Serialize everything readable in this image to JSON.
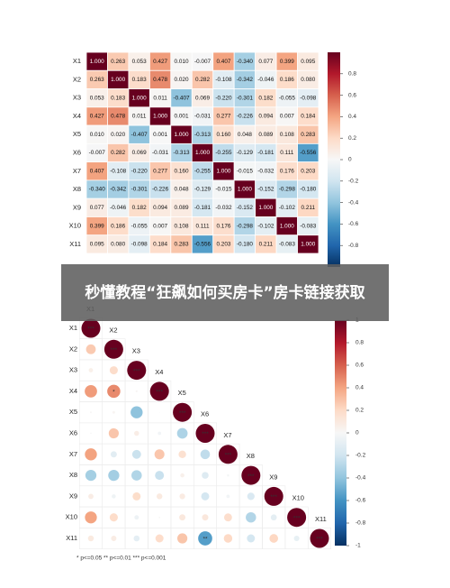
{
  "banner": "秒懂教程“狂飙如何买房卡”房卡链接获取",
  "chart_data": [
    {
      "type": "heatmap",
      "categories": [
        "X1",
        "X2",
        "X3",
        "X4",
        "X5",
        "X6",
        "X7",
        "X8",
        "X9",
        "X10",
        "X11"
      ],
      "values": [
        [
          1,
          0.263,
          0.053,
          0.427,
          0.01,
          -0.007,
          0.407,
          -0.34,
          0.077,
          0.399,
          0.095
        ],
        [
          0.263,
          1,
          0.183,
          0.478,
          0.02,
          0.282,
          -0.108,
          -0.342,
          -0.046,
          0.186,
          0.08
        ],
        [
          0.053,
          0.183,
          1,
          0.011,
          -0.407,
          0.069,
          -0.22,
          -0.301,
          0.182,
          -0.055,
          -0.098
        ],
        [
          0.427,
          0.478,
          0.011,
          1,
          0.001,
          -0.031,
          0.277,
          -0.226,
          0.094,
          0.007,
          0.184
        ],
        [
          0.01,
          0.02,
          -0.407,
          0.001,
          1,
          -0.313,
          0.16,
          0.048,
          0.089,
          0.108,
          0.283
        ],
        [
          -0.007,
          0.282,
          0.069,
          -0.031,
          -0.313,
          1,
          -0.255,
          -0.129,
          -0.181,
          0.111,
          -0.556
        ],
        [
          0.407,
          -0.108,
          -0.22,
          0.277,
          0.16,
          -0.255,
          1,
          -0.015,
          -0.032,
          0.176,
          0.203
        ],
        [
          -0.34,
          -0.342,
          -0.301,
          -0.226,
          0.048,
          -0.129,
          -0.015,
          1,
          -0.152,
          -0.298,
          -0.18
        ],
        [
          0.077,
          -0.046,
          0.182,
          0.094,
          0.089,
          -0.181,
          -0.032,
          -0.152,
          1,
          -0.102,
          0.211
        ],
        [
          0.399,
          0.186,
          -0.055,
          0.007,
          0.108,
          0.111,
          0.176,
          -0.298,
          -0.102,
          1,
          -0.083
        ],
        [
          0.095,
          0.08,
          -0.098,
          0.184,
          0.283,
          -0.556,
          0.203,
          -0.18,
          0.211,
          -0.083,
          1
        ]
      ],
      "value_labels": [
        [
          "1.000",
          "0.263",
          "0.053",
          "0.427",
          "0.010",
          "-0.007",
          "0.407",
          "-0.340",
          "0.077",
          "0.399",
          "0.095"
        ],
        [
          "0.263",
          "1.000",
          "0.183",
          "0.478",
          "0.020",
          "0.282",
          "-0.108",
          "-0.342",
          "-0.046",
          "0.186",
          "0.080"
        ],
        [
          "0.053",
          "0.183",
          "1.000",
          "0.011",
          "-0.407",
          "0.069",
          "-0.220",
          "-0.301",
          "0.182",
          "-0.055",
          "-0.098"
        ],
        [
          "0.427",
          "0.478",
          "0.011",
          "1.000",
          "0.001",
          "-0.031",
          "0.277",
          "-0.226",
          "0.094",
          "0.007",
          "0.184"
        ],
        [
          "0.010",
          "0.020",
          "-0.407",
          "0.001",
          "1.000",
          "-0.313",
          "0.160",
          "0.048",
          "0.089",
          "0.108",
          "0.283"
        ],
        [
          "-0.007",
          "0.282",
          "0.069",
          "-0.031",
          "-0.313",
          "1.000",
          "-0.255",
          "-0.129",
          "-0.181",
          "0.111",
          "-0.556"
        ],
        [
          "0.407",
          "-0.108",
          "-0.220",
          "0.277",
          "0.160",
          "-0.255",
          "1.000",
          "-0.015",
          "-0.032",
          "0.176",
          "0.203"
        ],
        [
          "-0.340",
          "-0.342",
          "-0.301",
          "-0.226",
          "0.048",
          "-0.129",
          "-0.015",
          "1.000",
          "-0.152",
          "-0.298",
          "-0.180"
        ],
        [
          "0.077",
          "-0.046",
          "0.182",
          "0.094",
          "0.089",
          "-0.181",
          "-0.032",
          "-0.152",
          "1.000",
          "-0.102",
          "0.211"
        ],
        [
          "0.399",
          "0.186",
          "-0.055",
          "0.007",
          "0.108",
          "0.111",
          "0.176",
          "-0.298",
          "-0.102",
          "1.000",
          "-0.083"
        ],
        [
          "0.095",
          "0.080",
          "-0.098",
          "0.184",
          "0.283",
          "-0.556",
          "0.203",
          "-0.180",
          "0.211",
          "-0.083",
          "1.000"
        ]
      ],
      "zlim": [
        -1,
        1
      ],
      "colorbar_ticks": [
        0.8,
        0.6,
        0.4,
        0.2,
        0,
        -0.2,
        -0.4,
        -0.6,
        -0.8
      ],
      "colors": [
        "#053061",
        "#2166ac",
        "#4393c3",
        "#92c5de",
        "#d1e5f0",
        "#f7f7f7",
        "#fddbc7",
        "#f4a582",
        "#d6604d",
        "#b2182b",
        "#67001f"
      ]
    },
    {
      "type": "corrplot",
      "categories": [
        "X1",
        "X2",
        "X3",
        "X4",
        "X5",
        "X6",
        "X7",
        "X8",
        "X9",
        "X10",
        "X11"
      ],
      "values": [
        [
          1
        ],
        [
          0.263,
          1
        ],
        [
          0.053,
          0.183,
          1
        ],
        [
          0.427,
          0.478,
          0.011,
          1
        ],
        [
          0.01,
          0.02,
          -0.407,
          0.001,
          1
        ],
        [
          -0.007,
          0.282,
          0.069,
          -0.031,
          -0.313,
          1
        ],
        [
          0.407,
          -0.108,
          -0.22,
          0.277,
          0.16,
          -0.255,
          1
        ],
        [
          -0.34,
          -0.342,
          -0.301,
          -0.226,
          0.048,
          -0.129,
          -0.015,
          1
        ],
        [
          0.077,
          -0.046,
          0.182,
          0.094,
          0.089,
          -0.181,
          -0.032,
          -0.152,
          1
        ],
        [
          0.399,
          0.186,
          -0.055,
          0.007,
          0.108,
          0.111,
          0.176,
          -0.298,
          -0.102,
          1
        ],
        [
          0.095,
          0.08,
          -0.098,
          0.184,
          0.283,
          -0.556,
          0.203,
          -0.18,
          0.211,
          -0.083,
          1
        ]
      ],
      "stars": [
        [
          "***"
        ],
        [
          null,
          "***"
        ],
        [
          null,
          null,
          "***"
        ],
        [
          null,
          "*",
          null,
          "***"
        ],
        [
          null,
          null,
          null,
          null,
          "***"
        ],
        [
          null,
          null,
          null,
          null,
          null,
          "***"
        ],
        [
          null,
          null,
          null,
          null,
          null,
          null,
          "***"
        ],
        [
          null,
          null,
          null,
          null,
          null,
          null,
          null,
          "***"
        ],
        [
          null,
          null,
          null,
          null,
          null,
          null,
          null,
          null,
          "***"
        ],
        [
          null,
          null,
          null,
          null,
          null,
          null,
          null,
          null,
          null,
          "***"
        ],
        [
          null,
          null,
          null,
          null,
          null,
          "**",
          null,
          null,
          null,
          null,
          "***"
        ]
      ],
      "zlim": [
        -1,
        1
      ],
      "colorbar_ticks": [
        1,
        0.8,
        0.6,
        0.4,
        0.2,
        0,
        -0.2,
        -0.4,
        -0.6,
        -0.8,
        -1
      ],
      "colors": [
        "#053061",
        "#2166ac",
        "#4393c3",
        "#92c5de",
        "#d1e5f0",
        "#f7f7f7",
        "#fddbc7",
        "#f4a582",
        "#d6604d",
        "#b2182b",
        "#67001f"
      ],
      "footnote": "* p<=0.05  ** p<=0.01  *** p<=0.001"
    }
  ]
}
